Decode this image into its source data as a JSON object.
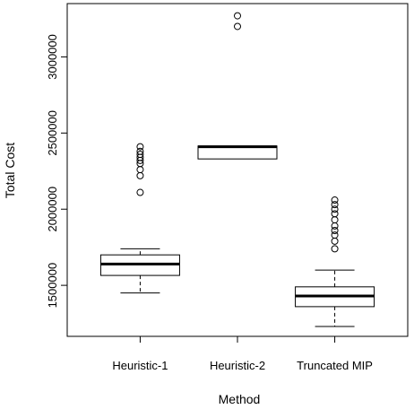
{
  "chart_data": {
    "type": "boxplot",
    "title": "",
    "xlabel": "Method",
    "ylabel": "Total Cost",
    "categories": [
      "Heuristic-1",
      "Heuristic-2",
      "Truncated MIP"
    ],
    "ylim": [
      1165000,
      3350000
    ],
    "y_ticks": [
      1500000,
      2000000,
      2500000,
      3000000
    ],
    "y_tick_labels": [
      "1500000",
      "2000000",
      "2500000",
      "3000000"
    ],
    "grid": false,
    "legend": "none",
    "boxes": [
      {
        "name": "Heuristic-1",
        "whisker_low": 1450000,
        "q1": 1565000,
        "median": 1640000,
        "q3": 1700000,
        "whisker_high": 1740000,
        "outliers": [
          2110000,
          2220000,
          2260000,
          2300000,
          2320000,
          2340000,
          2360000,
          2380000,
          2410000
        ]
      },
      {
        "name": "Heuristic-2",
        "whisker_low": 2330000,
        "q1": 2330000,
        "median": 2410000,
        "q3": 2415000,
        "whisker_high": 2415000,
        "outliers": [
          3200000,
          3270000
        ]
      },
      {
        "name": "Truncated MIP",
        "whisker_low": 1230000,
        "q1": 1360000,
        "median": 1430000,
        "q3": 1490000,
        "whisker_high": 1600000,
        "outliers": [
          1740000,
          1790000,
          1830000,
          1860000,
          1890000,
          1930000,
          1970000,
          2000000,
          2030000,
          2060000
        ]
      }
    ]
  }
}
